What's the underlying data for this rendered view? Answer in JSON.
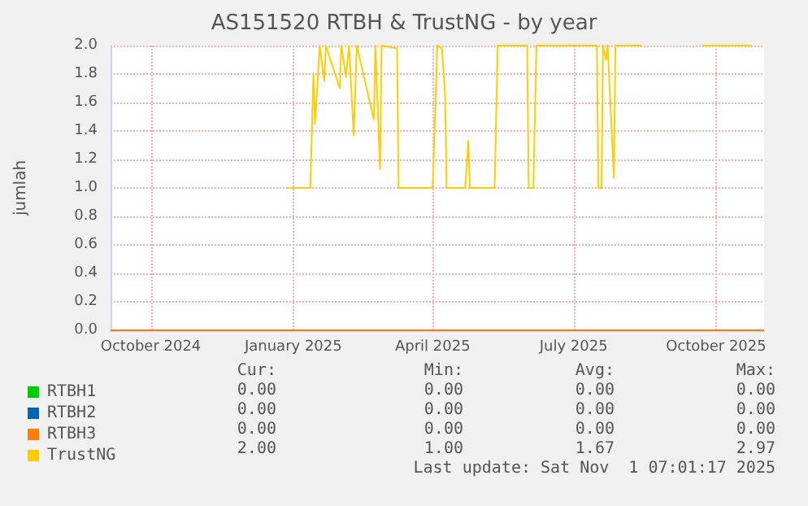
{
  "chart_data": {
    "type": "line",
    "title": "AS151520 RTBH & TrustNG - by year",
    "ylabel": "jumlah",
    "xlim": [
      "2024-09-05",
      "2025-11-01"
    ],
    "xticks": [
      {
        "value": "2024-10-01",
        "label": "October 2024"
      },
      {
        "value": "2025-01-01",
        "label": "January 2025"
      },
      {
        "value": "2025-04-01",
        "label": "April 2025"
      },
      {
        "value": "2025-07-01",
        "label": "July 2025"
      },
      {
        "value": "2025-10-01",
        "label": "October 2025"
      }
    ],
    "ylim": [
      0,
      2.0
    ],
    "yticks": [
      {
        "value": 0,
        "label": "0.0"
      },
      {
        "value": 0.2,
        "label": "0.2"
      },
      {
        "value": 0.4,
        "label": "0.4"
      },
      {
        "value": 0.6,
        "label": "0.6"
      },
      {
        "value": 0.8,
        "label": "0.8"
      },
      {
        "value": 1,
        "label": "1.0"
      },
      {
        "value": 1.2,
        "label": "1.2"
      },
      {
        "value": 1.4,
        "label": "1.4"
      },
      {
        "value": 1.6,
        "label": "1.6"
      },
      {
        "value": 1.8,
        "label": "1.8"
      },
      {
        "value": 2,
        "label": "2.0"
      }
    ],
    "grid": true,
    "legend": "bottom",
    "marker": "none",
    "series": [
      {
        "name": "RTBH1",
        "color": "#00cc00"
      },
      {
        "name": "RTBH2",
        "color": "#0066b3"
      },
      {
        "name": "RTBH3",
        "color": "#ff8000",
        "x": [
          "2024-09-05",
          "2025-11-01"
        ],
        "values": [
          0,
          0
        ]
      },
      {
        "name": "TrustNG",
        "color": "#ffcc00",
        "x": [
          "2024-12-28",
          "2025-01-12",
          "2025-01-14",
          "2025-01-15",
          "2025-01-17",
          "2025-01-18",
          "2025-01-21",
          "2025-01-22",
          "2025-01-31",
          "2025-02-01",
          "2025-02-04",
          "2025-02-06",
          "2025-02-09",
          "2025-02-11",
          "2025-02-22",
          "2025-02-23",
          "2025-02-26",
          "2025-02-27",
          "2025-03-09",
          "2025-03-10",
          "2025-04-01",
          "2025-04-04",
          "2025-04-07",
          "2025-04-09",
          "2025-04-10",
          "2025-04-22",
          "2025-04-24",
          "2025-04-25",
          "2025-05-11",
          "2025-05-13",
          "2025-06-01",
          "2025-06-02",
          "2025-06-05",
          "2025-06-07",
          "2025-07-16",
          "2025-07-17",
          "2025-07-19",
          "2025-07-20",
          "2025-07-22",
          "2025-07-23",
          "2025-07-27",
          "2025-07-28",
          "2025-08-14",
          "2025-08-20",
          "2025-09-22",
          "2025-10-24"
        ],
        "values": [
          1,
          1,
          1.8,
          1.45,
          1.8,
          2,
          1.75,
          2,
          1.7,
          2,
          1.78,
          2,
          1.37,
          2,
          1.48,
          2,
          1.13,
          2,
          1.98,
          1,
          1,
          2,
          1.98,
          1.66,
          1,
          1,
          1.33,
          1,
          1,
          2,
          2,
          1,
          1,
          2,
          2,
          1,
          1,
          2,
          1.9,
          2,
          1.07,
          2,
          2,
          null,
          2,
          2
        ]
      }
    ],
    "annotations": [
      "Cur:",
      "Min:",
      "Avg:",
      "Max:",
      "0.00",
      "0.00",
      "0.00",
      "0.00",
      "0.00",
      "0.00",
      "0.00",
      "0.00",
      "0.00",
      "0.00",
      "0.00",
      "0.00",
      "2.00",
      "1.00",
      "1.67",
      "2.97",
      "Last update: Sat Nov  1 07:01:17 2025"
    ]
  }
}
